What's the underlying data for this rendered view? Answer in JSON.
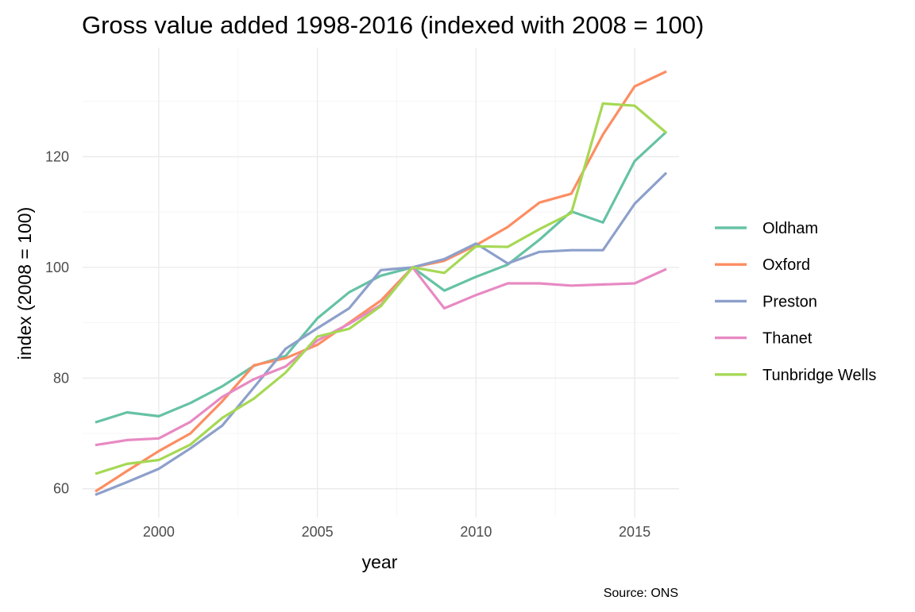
{
  "chart_data": {
    "type": "line",
    "title": "Gross value added 1998-2016 (indexed with 2008 = 100)",
    "xlabel": "year",
    "ylabel": "index (2008 = 100)",
    "caption": "Source: ONS",
    "x": [
      1998,
      1999,
      2000,
      2001,
      2002,
      2003,
      2004,
      2005,
      2006,
      2007,
      2008,
      2009,
      2010,
      2011,
      2012,
      2013,
      2014,
      2015,
      2016
    ],
    "xlim": [
      1997.6,
      2016.4
    ],
    "ylim": [
      54.8,
      139.7
    ],
    "x_ticks": [
      2000,
      2005,
      2010,
      2015
    ],
    "x_tick_labels": [
      "2000",
      "2005",
      "2010",
      "2015"
    ],
    "y_ticks": [
      60,
      80,
      100,
      120
    ],
    "y_tick_labels": [
      "60",
      "80",
      "100",
      "120"
    ],
    "grid": true,
    "legend_position": "right",
    "series": [
      {
        "name": "Oldham",
        "color": "#66C2A5",
        "values": [
          72.0,
          73.8,
          73.1,
          75.5,
          78.5,
          82.2,
          84.0,
          90.8,
          95.5,
          98.5,
          100.0,
          95.8,
          98.3,
          100.5,
          105.0,
          110.1,
          108.1,
          119.2,
          124.5
        ]
      },
      {
        "name": "Oxford",
        "color": "#FC8D62",
        "values": [
          59.5,
          63.2,
          66.8,
          70.0,
          75.8,
          82.3,
          83.6,
          86.0,
          90.0,
          94.0,
          100.0,
          101.2,
          104.0,
          107.3,
          111.7,
          113.3,
          124.0,
          132.7,
          135.4
        ]
      },
      {
        "name": "Preston",
        "color": "#8DA0CB",
        "values": [
          58.9,
          61.2,
          63.6,
          67.3,
          71.4,
          78.3,
          85.3,
          89.0,
          92.6,
          99.5,
          100.0,
          101.5,
          104.3,
          100.7,
          102.8,
          103.1,
          103.1,
          111.5,
          117.1
        ]
      },
      {
        "name": "Thanet",
        "color": "#E78AC3",
        "values": [
          67.9,
          68.8,
          69.1,
          72.1,
          76.6,
          79.8,
          82.1,
          86.8,
          89.8,
          93.2,
          100.0,
          92.6,
          95.0,
          97.1,
          97.1,
          96.7,
          96.9,
          97.1,
          99.7
        ]
      },
      {
        "name": "Tunbridge Wells",
        "color": "#A6D854",
        "values": [
          62.7,
          64.5,
          65.2,
          68.0,
          72.8,
          76.3,
          81.0,
          87.5,
          88.9,
          93.0,
          100.0,
          99.0,
          103.8,
          103.7,
          106.9,
          109.8,
          129.6,
          129.2,
          124.3
        ]
      }
    ]
  }
}
